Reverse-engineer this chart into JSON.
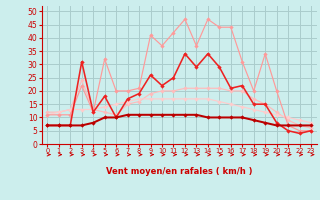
{
  "xlabel": "Vent moyen/en rafales ( km/h )",
  "bg_color": "#cceeed",
  "grid_color": "#aacccc",
  "x": [
    0,
    1,
    2,
    3,
    4,
    5,
    6,
    7,
    8,
    9,
    10,
    11,
    12,
    13,
    14,
    15,
    16,
    17,
    18,
    19,
    20,
    21,
    22,
    23
  ],
  "ylim": [
    0,
    52
  ],
  "yticks": [
    0,
    5,
    10,
    15,
    20,
    25,
    30,
    35,
    40,
    45,
    50
  ],
  "line1_color": "#ff9999",
  "line1_y": [
    11,
    11,
    11,
    22,
    12,
    32,
    20,
    20,
    21,
    41,
    37,
    42,
    47,
    37,
    47,
    44,
    44,
    31,
    20,
    34,
    20,
    7,
    5,
    5
  ],
  "line2_color": "#ee2222",
  "line2_y": [
    7,
    7,
    7,
    31,
    12,
    18,
    10,
    17,
    19,
    26,
    22,
    25,
    34,
    29,
    34,
    29,
    21,
    22,
    15,
    15,
    8,
    5,
    4,
    5
  ],
  "line3_color": "#ffbbbb",
  "line3_y": [
    12,
    12,
    13,
    24,
    13,
    12,
    11,
    15,
    16,
    19,
    20,
    20,
    21,
    21,
    21,
    21,
    20,
    20,
    17,
    15,
    12,
    9,
    7,
    6
  ],
  "line4_color": "#bb0000",
  "line4_y": [
    7,
    7,
    7,
    7,
    8,
    10,
    10,
    11,
    11,
    11,
    11,
    11,
    11,
    11,
    10,
    10,
    10,
    10,
    9,
    8,
    7,
    7,
    7,
    7
  ],
  "line5_color": "#ffcccc",
  "line5_y": [
    11,
    12,
    13,
    13,
    13,
    14,
    15,
    16,
    17,
    17,
    17,
    17,
    17,
    17,
    17,
    16,
    15,
    14,
    13,
    12,
    11,
    10,
    9,
    8
  ],
  "arrow_color": "#cc0000"
}
